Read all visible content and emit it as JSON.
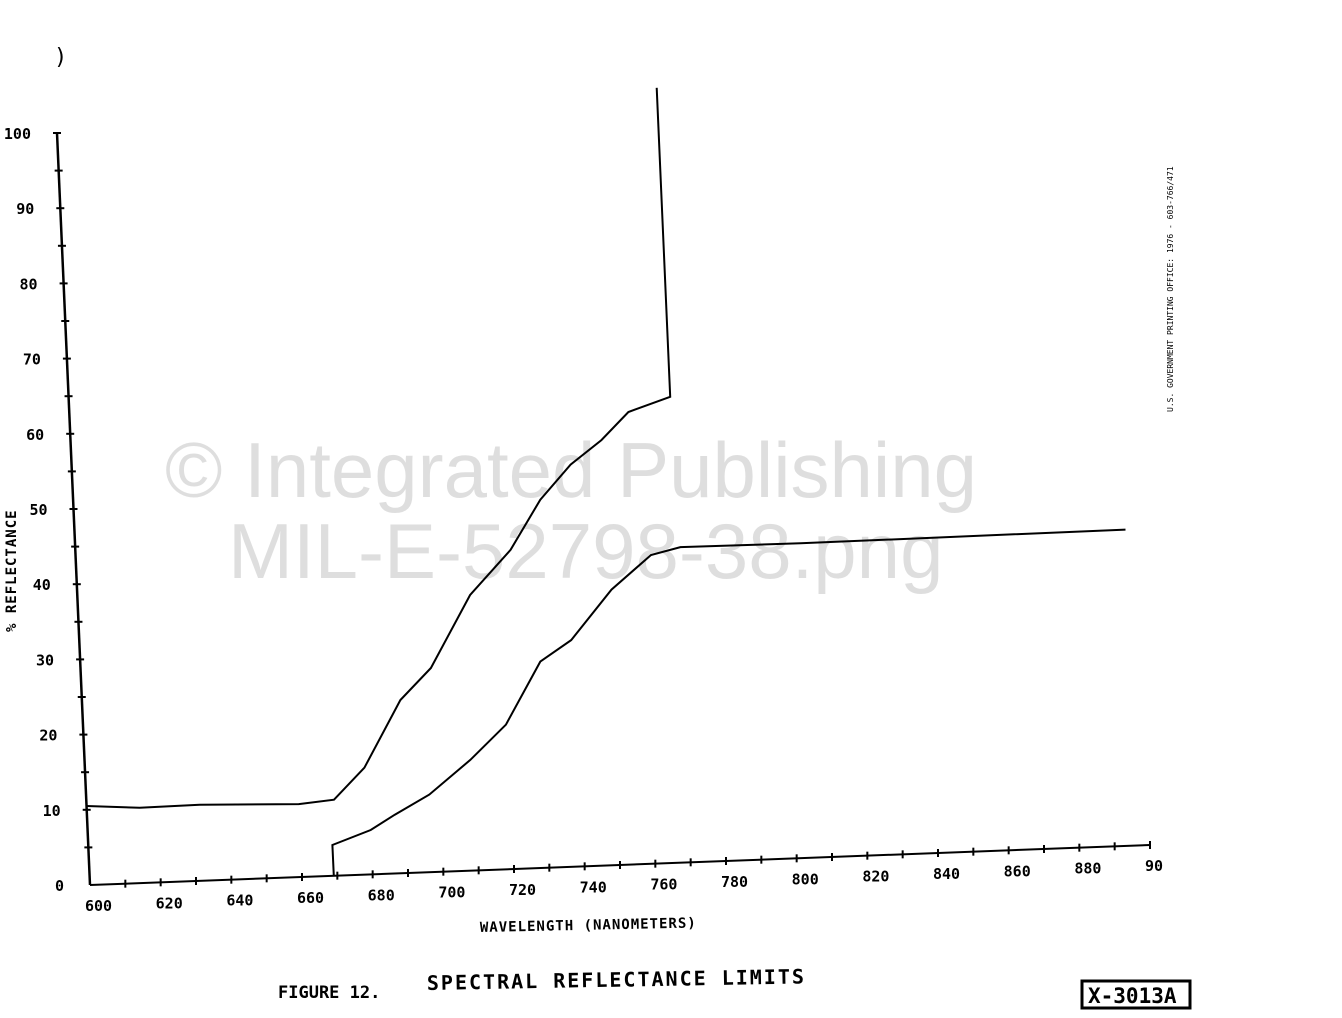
{
  "chart_data": {
    "type": "line",
    "title": "SPECTRAL REFLECTANCE LIMITS",
    "figure_label": "FIGURE 12.",
    "xlabel": "WAVELENGTH (NANOMETERS)",
    "ylabel": "% REFLECTANCE",
    "xlim": [
      600,
      900
    ],
    "ylim": [
      0,
      100
    ],
    "grid": false,
    "x_tick_labels": [
      "600",
      "620",
      "640",
      "660",
      "680",
      "700",
      "720",
      "740",
      "760",
      "780",
      "800",
      "820",
      "840",
      "860",
      "880",
      "90"
    ],
    "y_tick_labels": [
      "0",
      "10",
      "20",
      "30",
      "40",
      "50",
      "60",
      "70",
      "80",
      "90",
      "100"
    ],
    "series": [
      {
        "points": [
          [
            600,
            10.5
          ],
          [
            615,
            10.0
          ],
          [
            632,
            10.1
          ],
          [
            660,
            9.7
          ],
          [
            670,
            10.1
          ],
          [
            679,
            14.2
          ],
          [
            690,
            23
          ],
          [
            699,
            27.1
          ],
          [
            711,
            36.6
          ],
          [
            723,
            42.4
          ],
          [
            732,
            48.9
          ],
          [
            741,
            53.4
          ],
          [
            750,
            56.5
          ],
          [
            758,
            60.1
          ],
          [
            770,
            61.9
          ],
          [
            770,
            103
          ]
        ]
      },
      {
        "points": [
          [
            669,
            0
          ],
          [
            669,
            4.1
          ],
          [
            680,
            5.9
          ],
          [
            687,
            7.8
          ],
          [
            697,
            10.3
          ],
          [
            709,
            14.7
          ],
          [
            719.5,
            19.2
          ],
          [
            730,
            27.4
          ],
          [
            739,
            30.1
          ],
          [
            751,
            36.6
          ],
          [
            762.6,
            41
          ],
          [
            771,
            41.9
          ],
          [
            805,
            41.8
          ],
          [
            897,
            42
          ]
        ]
      }
    ]
  },
  "drawing_number": "X-3013A",
  "side_note": "U.S. GOVERNMENT PRINTING OFFICE: 1976 - 603-766/471",
  "watermark": {
    "line1": "© Integrated Publishing",
    "line2": "MIL-E-52798-38.png"
  }
}
